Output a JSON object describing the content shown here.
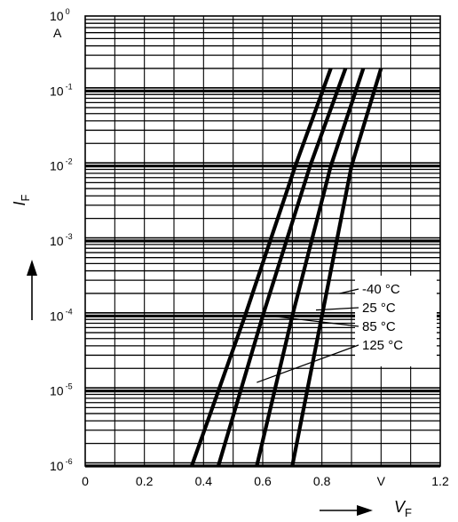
{
  "chart_data": {
    "type": "line",
    "xlabel": "V",
    "xlabel_sub": "F",
    "ylabel": "I",
    "ylabel_sub": "F",
    "x_unit": "V",
    "y_unit": "A",
    "x_ticks": [
      "0",
      "0.2",
      "0.4",
      "0.6",
      "0.8",
      "V",
      "1.2"
    ],
    "x_tick_values": [
      0,
      0.2,
      0.4,
      0.6,
      0.8,
      1.0,
      1.2
    ],
    "y_tick_values": [
      0,
      -1,
      -2,
      -3,
      -4,
      -5,
      -6
    ],
    "y_tick_base": "10",
    "y_tick_exponents": [
      "0",
      "-1",
      "-2",
      "-3",
      "-4",
      "-5",
      "-6"
    ],
    "xlim": [
      0,
      1.2
    ],
    "ylim": [
      1e-06,
      1
    ],
    "y_scale": "log",
    "grid": true,
    "legend_entries": [
      "-40 °C",
      "25 °C",
      "85 °C",
      "125 °C"
    ],
    "series": [
      {
        "name": "-40 °C",
        "x": [
          0.7,
          0.8,
          0.9,
          1.0
        ],
        "y": [
          1e-06,
          0.0001,
          0.01,
          0.2
        ]
      },
      {
        "name": "25 °C",
        "x": [
          0.58,
          0.7,
          0.83,
          0.94
        ],
        "y": [
          1e-06,
          0.0001,
          0.01,
          0.2
        ]
      },
      {
        "name": "85 °C",
        "x": [
          0.45,
          0.6,
          0.76,
          0.88
        ],
        "y": [
          1e-06,
          0.0001,
          0.01,
          0.2
        ]
      },
      {
        "name": "125 °C",
        "x": [
          0.36,
          0.54,
          0.71,
          0.83
        ],
        "y": [
          1e-06,
          0.0001,
          0.01,
          0.2
        ]
      }
    ]
  }
}
